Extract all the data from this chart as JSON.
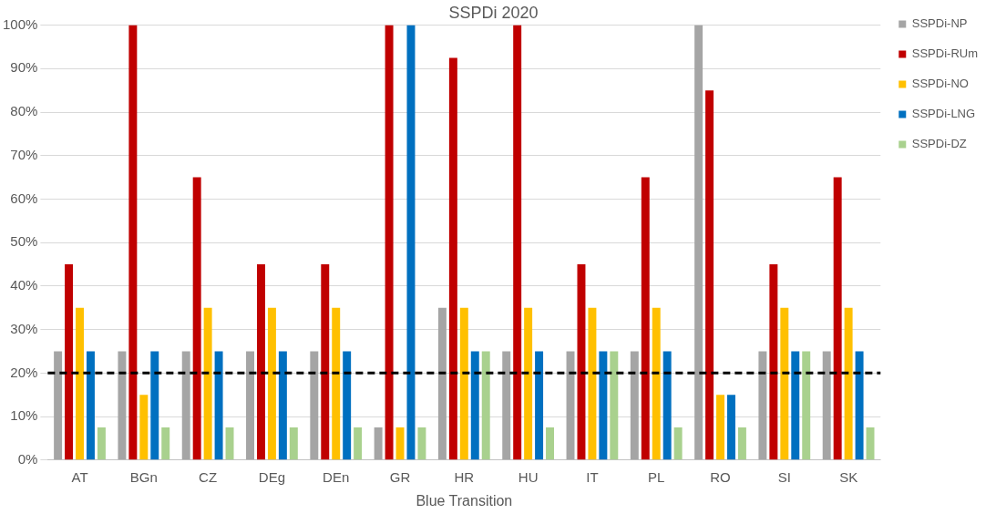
{
  "chart_data": {
    "type": "bar",
    "title": "SSPDi 2020",
    "xlabel": "Blue Transition",
    "categories": [
      "AT",
      "BGn",
      "CZ",
      "DEg",
      "DEn",
      "GR",
      "HR",
      "HU",
      "IT",
      "PL",
      "RO",
      "SI",
      "SK"
    ],
    "series": [
      {
        "name": "SSPDi-NP",
        "color": "#a5a5a5",
        "values": [
          25,
          25,
          25,
          25,
          25,
          7.5,
          35,
          25,
          25,
          25,
          100,
          25,
          25
        ]
      },
      {
        "name": "SSPDi-RUm",
        "color": "#c00000",
        "values": [
          45,
          100,
          65,
          45,
          45,
          100,
          92.5,
          100,
          45,
          65,
          85,
          45,
          65
        ]
      },
      {
        "name": "SSPDi-NO",
        "color": "#ffc000",
        "values": [
          35,
          15,
          35,
          35,
          35,
          7.5,
          35,
          35,
          35,
          35,
          15,
          35,
          35
        ]
      },
      {
        "name": "SSPDi-LNG",
        "color": "#0070c0",
        "values": [
          25,
          25,
          25,
          25,
          25,
          100,
          25,
          25,
          25,
          25,
          15,
          25,
          25
        ]
      },
      {
        "name": "SSPDi-DZ",
        "color": "#a9d18e",
        "values": [
          7.5,
          7.5,
          7.5,
          7.5,
          7.5,
          7.5,
          25,
          7.5,
          25,
          7.5,
          7.5,
          25,
          7.5
        ]
      }
    ],
    "ylim": [
      0,
      100
    ],
    "yticks": [
      {
        "value": 0,
        "label": "0%"
      },
      {
        "value": 10,
        "label": "10%"
      },
      {
        "value": 20,
        "label": "20%"
      },
      {
        "value": 30,
        "label": "30%"
      },
      {
        "value": 40,
        "label": "40%"
      },
      {
        "value": 50,
        "label": "50%"
      },
      {
        "value": 60,
        "label": "60%"
      },
      {
        "value": 70,
        "label": "70%"
      },
      {
        "value": 80,
        "label": "80%"
      },
      {
        "value": 90,
        "label": "90%"
      },
      {
        "value": 100,
        "label": "100%"
      }
    ],
    "ref_lines": [
      {
        "axis": "y",
        "value": 20,
        "color": "#000000",
        "line_style": "dashed"
      }
    ],
    "grid": "y",
    "legend": "top right"
  }
}
